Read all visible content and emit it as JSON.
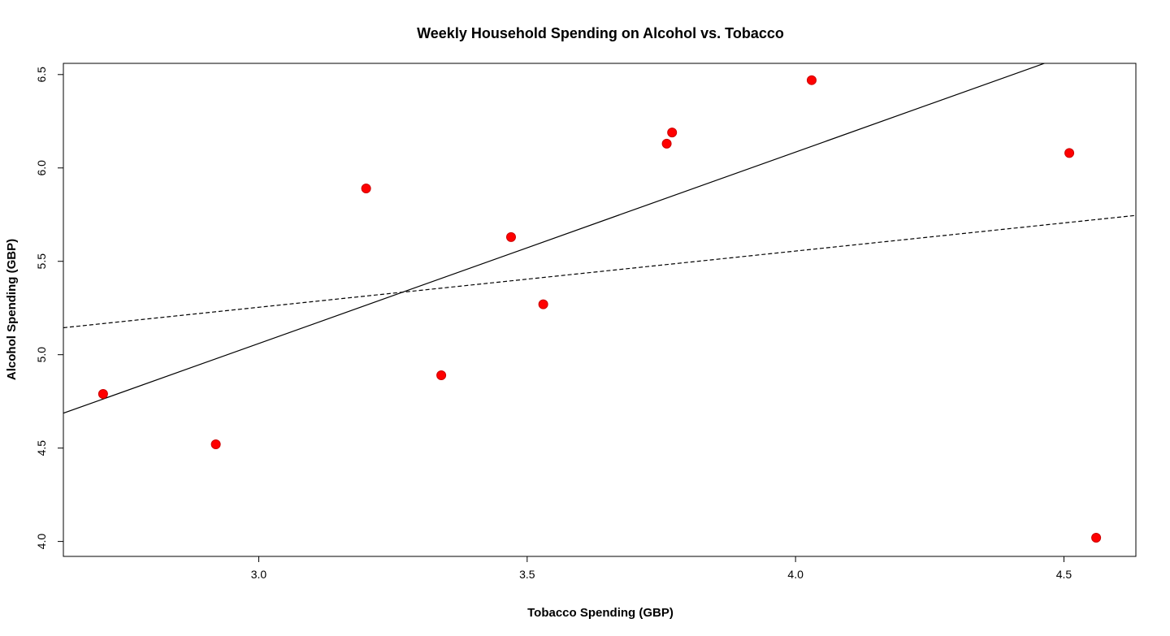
{
  "chart_data": {
    "type": "scatter",
    "title": "Weekly Household Spending on Alcohol vs. Tobacco",
    "xlabel": "Tobacco Spending (GBP)",
    "ylabel": "Alcohol Spending (GBP)",
    "xlim": [
      2.636,
      4.634
    ],
    "ylim": [
      3.92,
      6.56
    ],
    "x_ticks": [
      "3.0",
      "3.5",
      "4.0",
      "4.5"
    ],
    "y_ticks": [
      "4.0",
      "4.5",
      "5.0",
      "5.5",
      "6.0",
      "6.5"
    ],
    "grid": false,
    "legend": "none",
    "point_color": "#ff0000",
    "points": [
      {
        "x": 2.71,
        "y": 4.79
      },
      {
        "x": 2.92,
        "y": 4.52
      },
      {
        "x": 3.2,
        "y": 5.89
      },
      {
        "x": 3.34,
        "y": 4.89
      },
      {
        "x": 3.47,
        "y": 5.63
      },
      {
        "x": 3.53,
        "y": 5.27
      },
      {
        "x": 3.76,
        "y": 6.13
      },
      {
        "x": 3.77,
        "y": 6.19
      },
      {
        "x": 4.03,
        "y": 6.47
      },
      {
        "x": 4.51,
        "y": 6.08
      },
      {
        "x": 4.56,
        "y": 4.02
      }
    ],
    "lines": [
      {
        "style": "solid",
        "color": "#000000",
        "intercept": 1.985,
        "slope": 1.025
      },
      {
        "style": "dashed",
        "color": "#000000",
        "intercept": 4.351,
        "slope": 0.301
      }
    ]
  }
}
